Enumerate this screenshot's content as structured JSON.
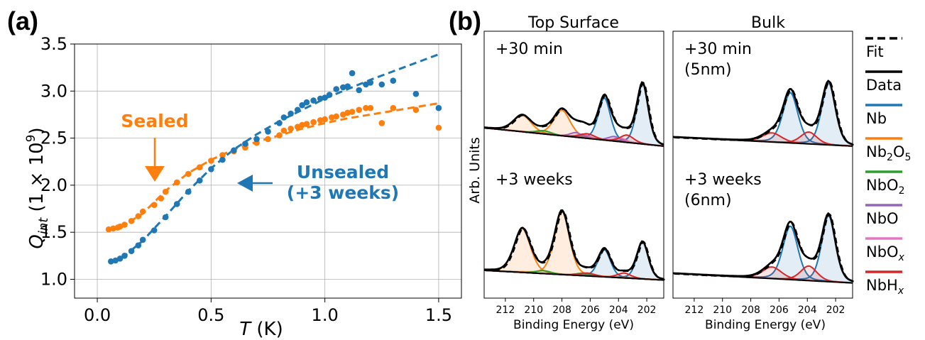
{
  "colors": {
    "nb": "#1f77b4",
    "nb2o5": "#ff7f0e",
    "nbo2": "#2ca02c",
    "nbo": "#9467bd",
    "nbox": "#e377c2",
    "nbhx": "#d62728",
    "data": "#000000",
    "fit": "#000000"
  },
  "chart_data": [
    {
      "panel": "(a)",
      "type": "scatter",
      "xlabel_main": "T",
      "xlabel_unit": " (K)",
      "ylabel_main": "Q",
      "ylabel_sub": "int",
      "ylabel_unit": " (1 × 10",
      "ylabel_exp": "9",
      "ylabel_close": ")",
      "xlim": [
        -0.1,
        1.6
      ],
      "ylim": [
        0.8,
        3.5
      ],
      "xticks": [
        "0.0",
        "0.5",
        "1.0",
        "1.5"
      ],
      "xtick_values": [
        0.0,
        0.5,
        1.0,
        1.5
      ],
      "yticks": [
        "1.0",
        "1.5",
        "2.0",
        "2.5",
        "3.0",
        "3.5"
      ],
      "ytick_values": [
        1.0,
        1.5,
        2.0,
        2.5,
        3.0,
        3.5
      ],
      "grid": true,
      "annotations": [
        {
          "text": "Sealed",
          "color": "#ff7f0e"
        },
        {
          "text": "Unsealed",
          "color": "#1f77b4"
        },
        {
          "text": "(+3 weeks)",
          "color": "#1f77b4"
        }
      ],
      "series": [
        {
          "label": "Sealed",
          "color": "#ff7f0e",
          "x": [
            0.05,
            0.07,
            0.09,
            0.1,
            0.12,
            0.15,
            0.18,
            0.2,
            0.25,
            0.28,
            0.3,
            0.35,
            0.4,
            0.45,
            0.5,
            0.55,
            0.6,
            0.65,
            0.7,
            0.75,
            0.8,
            0.82,
            0.85,
            0.88,
            0.9,
            0.92,
            0.95,
            0.98,
            1.0,
            1.03,
            1.05,
            1.08,
            1.1,
            1.12,
            1.15,
            1.18,
            1.2,
            1.25,
            1.3,
            1.4,
            1.5
          ],
          "y": [
            1.53,
            1.54,
            1.55,
            1.56,
            1.58,
            1.62,
            1.67,
            1.72,
            1.79,
            1.86,
            1.93,
            2.03,
            2.12,
            2.19,
            2.26,
            2.32,
            2.36,
            2.4,
            2.45,
            2.49,
            2.53,
            2.58,
            2.6,
            2.62,
            2.64,
            2.65,
            2.67,
            2.69,
            2.7,
            2.72,
            2.73,
            2.75,
            2.77,
            2.78,
            2.8,
            2.82,
            2.82,
            2.66,
            2.82,
            2.8,
            2.61
          ]
        },
        {
          "label": "Unsealed (+3 weeks)",
          "color": "#1f77b4",
          "x": [
            0.06,
            0.08,
            0.1,
            0.12,
            0.15,
            0.18,
            0.2,
            0.25,
            0.3,
            0.35,
            0.4,
            0.45,
            0.5,
            0.55,
            0.6,
            0.65,
            0.7,
            0.75,
            0.8,
            0.82,
            0.85,
            0.88,
            0.9,
            0.92,
            0.95,
            0.98,
            1.0,
            1.02,
            1.05,
            1.08,
            1.1,
            1.12,
            1.15,
            1.18,
            1.2,
            1.25,
            1.3,
            1.4,
            1.5
          ],
          "y": [
            1.19,
            1.2,
            1.22,
            1.25,
            1.3,
            1.36,
            1.42,
            1.52,
            1.66,
            1.8,
            1.93,
            2.05,
            2.17,
            2.27,
            2.37,
            2.44,
            2.49,
            2.57,
            2.66,
            2.72,
            2.76,
            2.8,
            2.85,
            2.88,
            2.9,
            2.92,
            2.93,
            2.96,
            3.02,
            3.04,
            3.05,
            3.19,
            3.01,
            3.07,
            3.09,
            3.07,
            3.11,
            2.97,
            2.82
          ]
        }
      ],
      "fits": [
        {
          "color": "#ff7f0e",
          "x": [
            0.05,
            0.1,
            0.2,
            0.3,
            0.4,
            0.5,
            0.6,
            0.7,
            0.8,
            0.9,
            1.0,
            1.1,
            1.2,
            1.3,
            1.4,
            1.5
          ],
          "y": [
            1.53,
            1.55,
            1.7,
            1.94,
            2.13,
            2.27,
            2.38,
            2.46,
            2.53,
            2.6,
            2.66,
            2.71,
            2.75,
            2.79,
            2.83,
            2.87
          ]
        },
        {
          "color": "#1f77b4",
          "x": [
            0.06,
            0.1,
            0.2,
            0.3,
            0.4,
            0.5,
            0.6,
            0.7,
            0.8,
            0.9,
            1.0,
            1.1,
            1.2,
            1.3,
            1.4,
            1.5
          ],
          "y": [
            1.19,
            1.21,
            1.41,
            1.67,
            1.94,
            2.18,
            2.38,
            2.54,
            2.68,
            2.8,
            2.92,
            3.02,
            3.12,
            3.21,
            3.3,
            3.39
          ]
        }
      ]
    },
    {
      "panel": "(b)",
      "type": "line",
      "ylabel": "Arb. Units",
      "xlabel": "Binding Energy (eV)",
      "xlim": [
        213.5,
        200.8
      ],
      "xticks": [
        "212",
        "210",
        "208",
        "206",
        "204",
        "202"
      ],
      "xtick_values": [
        212,
        210,
        208,
        206,
        204,
        202
      ],
      "columns": [
        "Top Surface",
        "Bulk"
      ],
      "subplots": [
        {
          "column": 0,
          "row": 0,
          "label_lines": [
            "+30 min"
          ],
          "background": [
            0.1,
            -0.1
          ],
          "peaks": [
            {
              "component": "Nb",
              "center": 202.3,
              "height": 0.66,
              "width": 0.42
            },
            {
              "component": "Nb",
              "center": 205.0,
              "height": 0.46,
              "width": 0.45
            },
            {
              "component": "Nb2O5",
              "center": 210.8,
              "height": 0.18,
              "width": 0.65
            },
            {
              "component": "Nb2O5",
              "center": 208.0,
              "height": 0.28,
              "width": 0.6
            },
            {
              "component": "NbO2",
              "center": 209.3,
              "height": 0.035,
              "width": 0.55
            },
            {
              "component": "NbO2",
              "center": 206.5,
              "height": 0.03,
              "width": 0.55
            },
            {
              "component": "NbO",
              "center": 207.0,
              "height": 0.05,
              "width": 0.45
            },
            {
              "component": "NbO",
              "center": 204.3,
              "height": 0.05,
              "width": 0.45
            },
            {
              "component": "NbOx",
              "center": 206.5,
              "height": 0.04,
              "width": 0.45
            },
            {
              "component": "NbOx",
              "center": 203.9,
              "height": 0.04,
              "width": 0.45
            },
            {
              "component": "NbHx",
              "center": 206.2,
              "height": 0.05,
              "width": 0.55
            },
            {
              "component": "NbHx",
              "center": 203.4,
              "height": 0.08,
              "width": 0.5
            }
          ]
        },
        {
          "column": 0,
          "row": 1,
          "label_lines": [
            "+3 weeks"
          ],
          "background": [
            0.03,
            -0.07
          ],
          "peaks": [
            {
              "component": "Nb",
              "center": 202.3,
              "height": 0.38,
              "width": 0.42
            },
            {
              "component": "Nb",
              "center": 205.0,
              "height": 0.28,
              "width": 0.45
            },
            {
              "component": "Nb2O5",
              "center": 210.8,
              "height": 0.45,
              "width": 0.6
            },
            {
              "component": "Nb2O5",
              "center": 208.0,
              "height": 0.65,
              "width": 0.55
            },
            {
              "component": "NbO2",
              "center": 209.3,
              "height": 0.03,
              "width": 0.55
            },
            {
              "component": "NbO2",
              "center": 206.5,
              "height": 0.025,
              "width": 0.55
            },
            {
              "component": "NbHx",
              "center": 206.2,
              "height": 0.03,
              "width": 0.55
            },
            {
              "component": "NbHx",
              "center": 203.6,
              "height": 0.05,
              "width": 0.5
            }
          ]
        },
        {
          "column": 1,
          "row": 0,
          "label_lines": [
            "+30 min",
            "(5nm)"
          ],
          "background": [
            0.0,
            -0.1
          ],
          "peaks": [
            {
              "component": "Nb",
              "center": 202.5,
              "height": 0.68,
              "width": 0.5
            },
            {
              "component": "Nb",
              "center": 205.2,
              "height": 0.55,
              "width": 0.55
            },
            {
              "component": "NbHx",
              "center": 206.5,
              "height": 0.1,
              "width": 0.7
            },
            {
              "component": "NbHx",
              "center": 203.9,
              "height": 0.13,
              "width": 0.6
            }
          ]
        },
        {
          "column": 1,
          "row": 1,
          "label_lines": [
            "+3 weeks",
            "(6nm)"
          ],
          "background": [
            0.0,
            -0.1
          ],
          "peaks": [
            {
              "component": "Nb",
              "center": 202.5,
              "height": 0.68,
              "width": 0.5
            },
            {
              "component": "Nb",
              "center": 205.2,
              "height": 0.55,
              "width": 0.55
            },
            {
              "component": "NbHx",
              "center": 206.5,
              "height": 0.12,
              "width": 0.7
            },
            {
              "component": "NbHx",
              "center": 203.9,
              "height": 0.15,
              "width": 0.6
            }
          ]
        }
      ],
      "legend": [
        {
          "id": "Fit",
          "base": "Fit",
          "sub": "",
          "suffix": "",
          "color": "#000000",
          "dash": true
        },
        {
          "id": "Data",
          "base": "Data",
          "sub": "",
          "suffix": "",
          "color": "#000000",
          "dash": false
        },
        {
          "id": "Nb",
          "base": "Nb",
          "sub": "",
          "suffix": "",
          "color": "#1f77b4",
          "dash": false
        },
        {
          "id": "Nb2O5",
          "base": "Nb",
          "sub": "2",
          "suffix": "O",
          "sub2": "5",
          "color": "#ff7f0e",
          "dash": false
        },
        {
          "id": "NbO2",
          "base": "NbO",
          "sub": "2",
          "suffix": "",
          "color": "#2ca02c",
          "dash": false
        },
        {
          "id": "NbO",
          "base": "NbO",
          "sub": "",
          "suffix": "",
          "color": "#9467bd",
          "dash": false
        },
        {
          "id": "NbOx",
          "base": "NbO",
          "sub": "x",
          "suffix": "",
          "color": "#e377c2",
          "dash": false,
          "italic": true
        },
        {
          "id": "NbHx",
          "base": "NbH",
          "sub": "x",
          "suffix": "",
          "color": "#d62728",
          "dash": false,
          "italic": true
        }
      ]
    }
  ]
}
